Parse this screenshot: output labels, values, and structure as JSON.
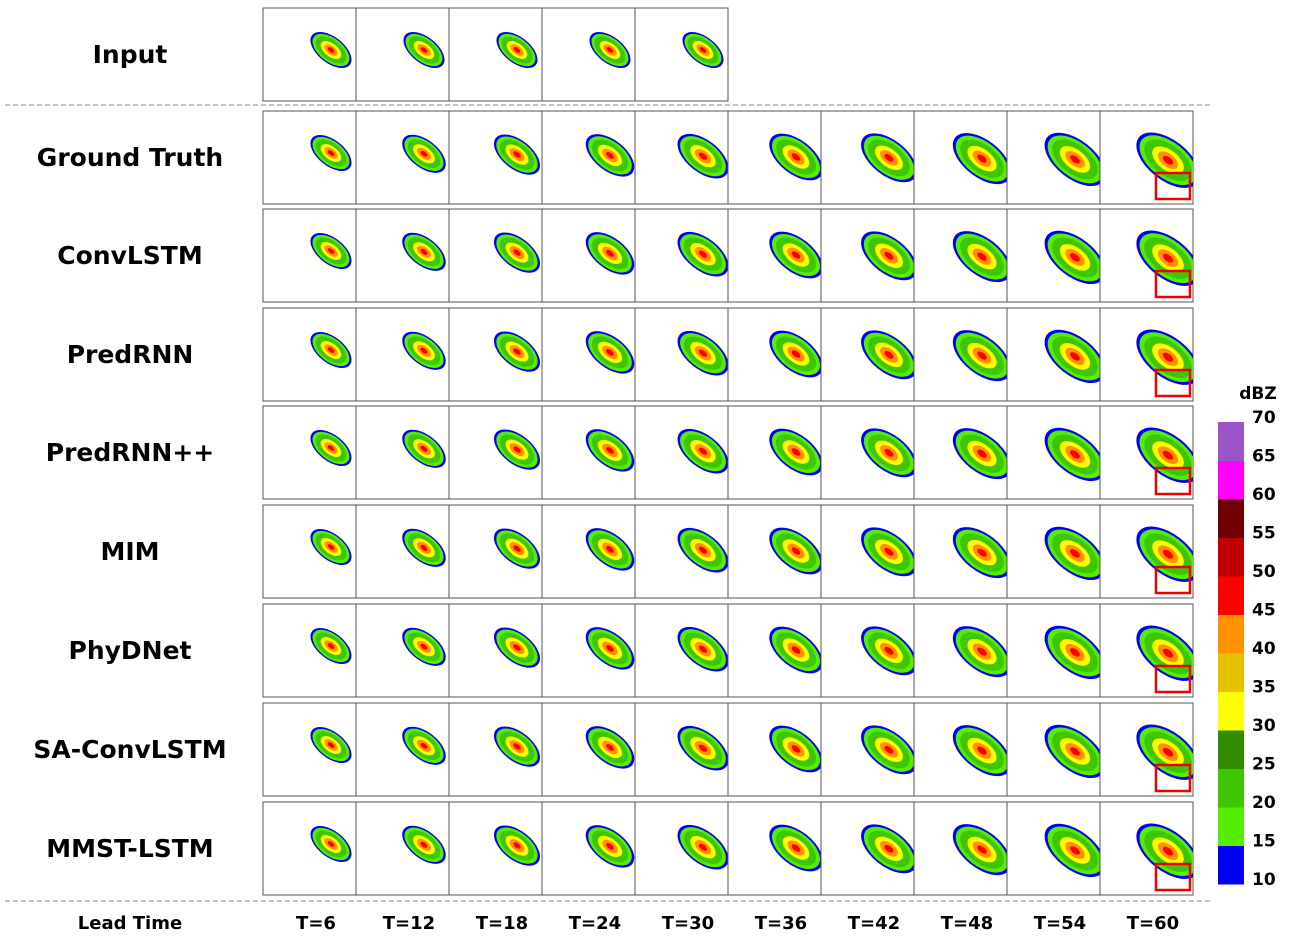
{
  "rows": [
    "Input",
    "Ground Truth",
    "ConvLSTM",
    "PredRNN",
    "PredRNN++",
    "MIM",
    "PhyDNet",
    "SA-ConvLSTM",
    "MMST-LSTM"
  ],
  "corner_label": "Lead Time",
  "columns": [
    "T=6",
    "T=12",
    "T=18",
    "T=24",
    "T=30",
    "T=36",
    "T=42",
    "T=48",
    "T=54",
    "T=60"
  ],
  "colorbar": {
    "unit": "dBZ",
    "ticks": [
      10,
      15,
      20,
      25,
      30,
      35,
      40,
      45,
      50,
      55,
      60,
      65,
      70
    ],
    "colors": [
      "#0000f6",
      "#55ee00",
      "#3ec600",
      "#2f8c00",
      "#fffe00",
      "#e7c000",
      "#ff9000",
      "#ff0000",
      "#c00000",
      "#6e0000",
      "#ff00ff",
      "#9955c8"
    ]
  }
}
